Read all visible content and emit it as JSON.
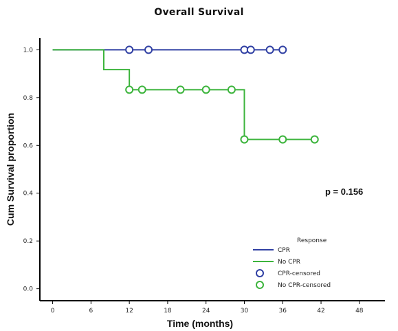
{
  "chart_data": {
    "type": "line",
    "title": "Overall Survival",
    "xlabel": "Time (months)",
    "ylabel": "Cum Survival proportion",
    "xlim": [
      -2,
      52
    ],
    "ylim": [
      -0.05,
      1.05
    ],
    "x_ticks": [
      0,
      6,
      12,
      18,
      24,
      30,
      36,
      42,
      48
    ],
    "y_ticks": [
      0.0,
      0.2,
      0.4,
      0.6,
      0.8,
      1.0
    ],
    "y_tick_labels": [
      "0.0",
      "0.2",
      "0.4",
      "0.6",
      "0.8",
      "1.0"
    ],
    "annotation": "p = 0.156",
    "legend_title": "Response",
    "legend_position": "bottom-right",
    "series": [
      {
        "name": "CPR",
        "color": "#2f3fa3",
        "steps": [
          [
            0,
            1.0
          ],
          [
            36,
            1.0
          ]
        ],
        "censored": [
          [
            12,
            1.0
          ],
          [
            15,
            1.0
          ],
          [
            30,
            1.0
          ],
          [
            31,
            1.0
          ],
          [
            34,
            1.0
          ],
          [
            36,
            1.0
          ]
        ],
        "censored_label": "CPR-censored"
      },
      {
        "name": "No CPR",
        "color": "#3cb43c",
        "steps": [
          [
            0,
            1.0
          ],
          [
            8,
            1.0
          ],
          [
            8,
            0.917
          ],
          [
            12,
            0.917
          ],
          [
            12,
            0.833
          ],
          [
            30,
            0.833
          ],
          [
            30,
            0.625
          ],
          [
            41,
            0.625
          ]
        ],
        "censored": [
          [
            12,
            0.833
          ],
          [
            14,
            0.833
          ],
          [
            20,
            0.833
          ],
          [
            24,
            0.833
          ],
          [
            28,
            0.833
          ],
          [
            30,
            0.625
          ],
          [
            36,
            0.625
          ],
          [
            41,
            0.625
          ]
        ],
        "censored_label": "No CPR-censored"
      }
    ]
  }
}
